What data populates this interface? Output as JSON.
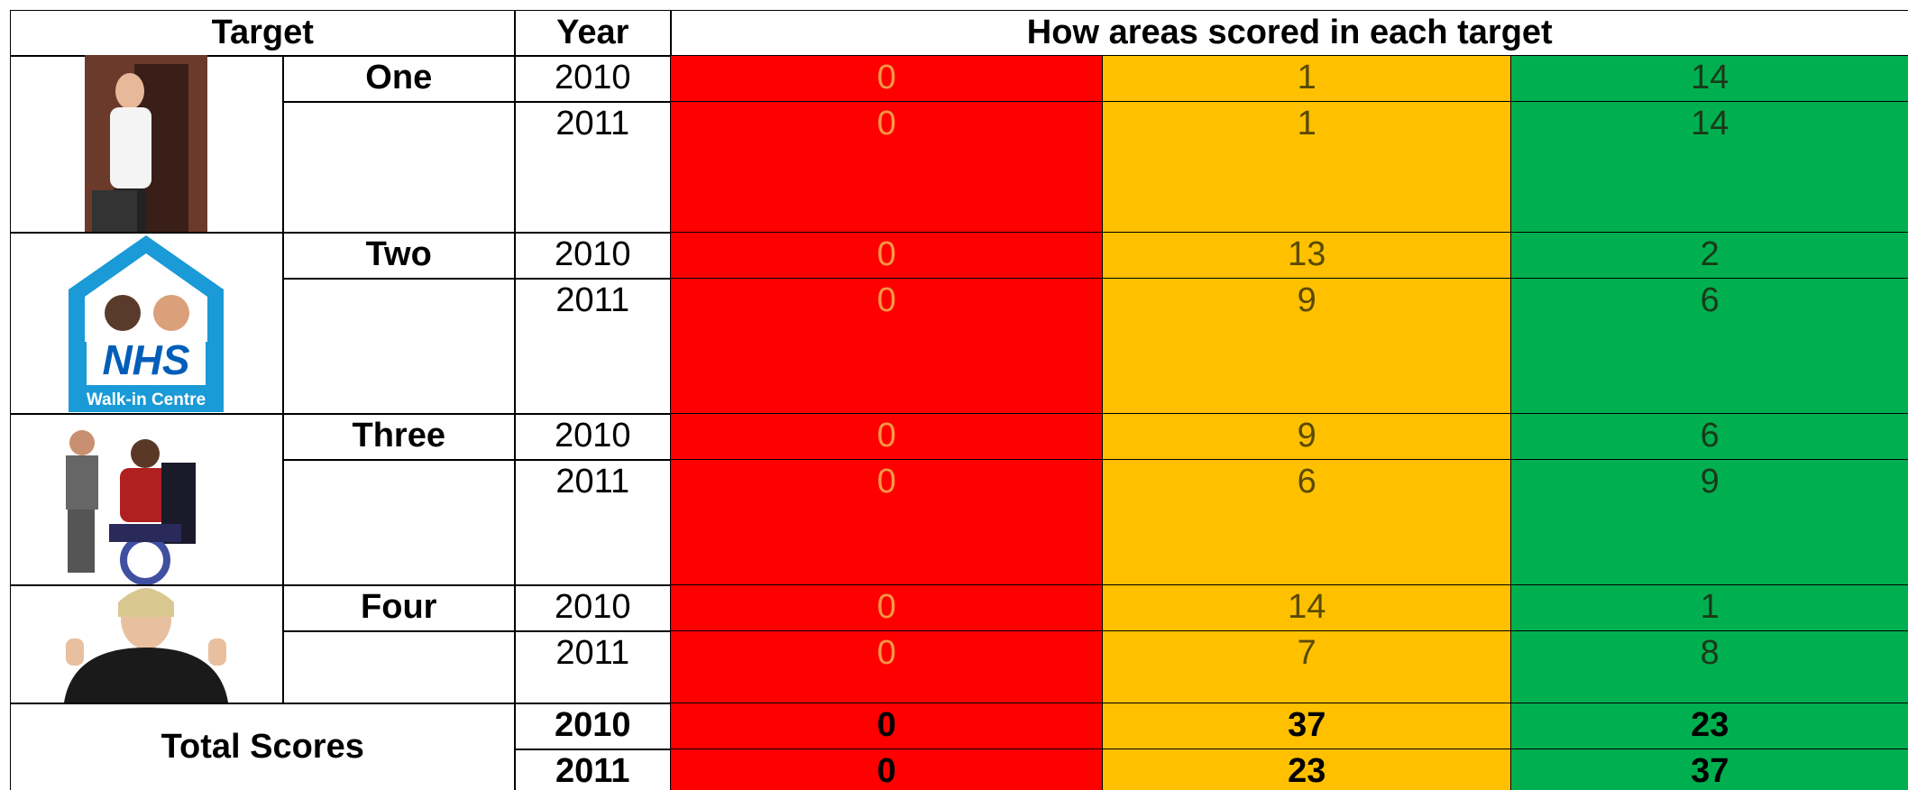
{
  "header": {
    "target": "Target",
    "year": "Year",
    "scores": "How areas scored in each target"
  },
  "targets": [
    {
      "name": "One",
      "rows": [
        {
          "year": 2010,
          "scores": [
            0,
            1,
            14
          ]
        },
        {
          "year": 2011,
          "scores": [
            0,
            1,
            14
          ]
        }
      ]
    },
    {
      "name": "Two",
      "logo": {
        "title": "NHS",
        "subtitle": "Walk-in Centre"
      },
      "rows": [
        {
          "year": 2010,
          "scores": [
            0,
            13,
            2
          ]
        },
        {
          "year": 2011,
          "scores": [
            0,
            9,
            6
          ]
        }
      ]
    },
    {
      "name": "Three",
      "rows": [
        {
          "year": 2010,
          "scores": [
            0,
            9,
            6
          ]
        },
        {
          "year": 2011,
          "scores": [
            0,
            6,
            9
          ]
        }
      ]
    },
    {
      "name": "Four",
      "rows": [
        {
          "year": 2010,
          "scores": [
            0,
            14,
            1
          ]
        },
        {
          "year": 2011,
          "scores": [
            0,
            7,
            8
          ]
        }
      ]
    }
  ],
  "totals": {
    "label": "Total Scores",
    "rows": [
      {
        "year": 2010,
        "scores": [
          0,
          37,
          23
        ]
      },
      {
        "year": 2011,
        "scores": [
          0,
          23,
          37
        ]
      }
    ]
  }
}
